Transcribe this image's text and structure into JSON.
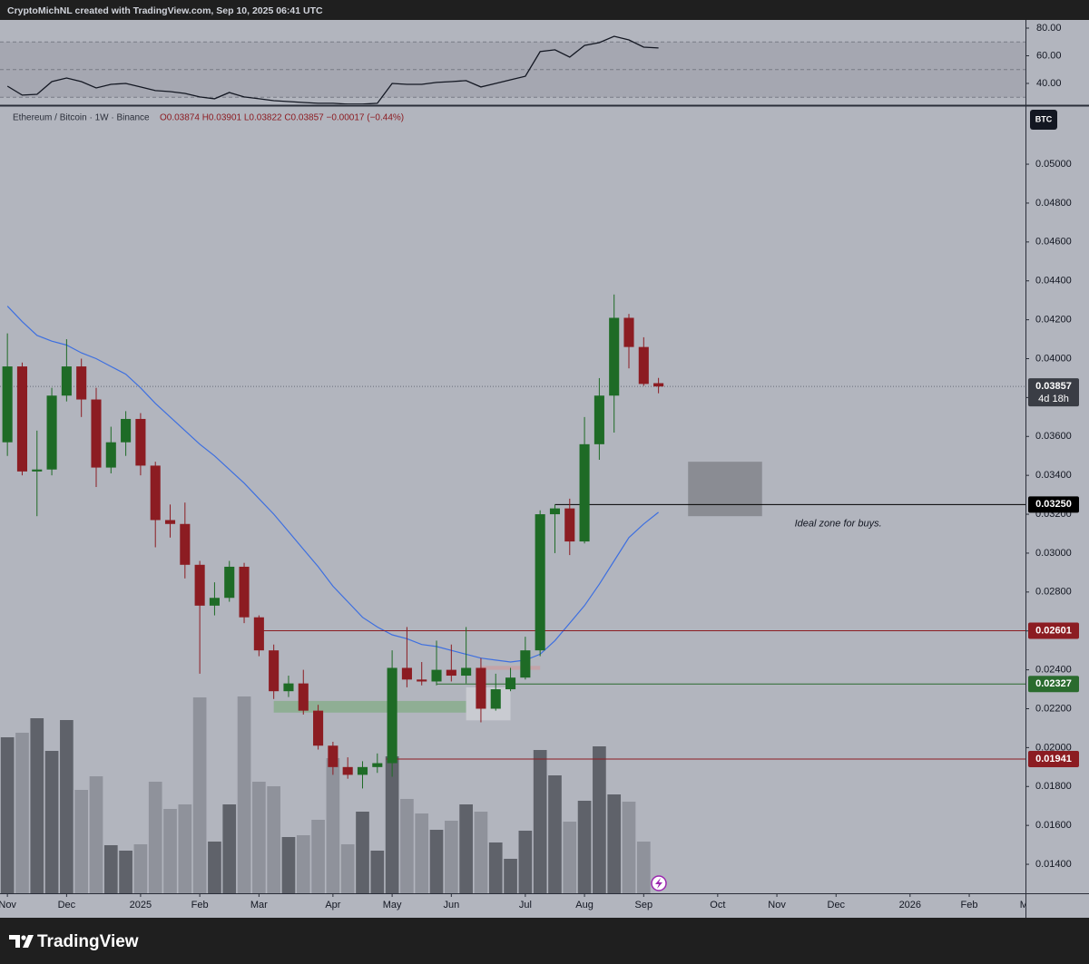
{
  "chart_data": {
    "type": "candlestick",
    "header": "CryptoMichNL created with TradingView.com, Sep 10, 2025 06:41 UTC",
    "symbol": "Ethereum / Bitcoin · 1W · Binance",
    "ohlc_legend": "O0.03874 H0.03901 L0.03822 C0.03857 −0.00017 (−0.44%)",
    "currency": "BTC",
    "categories": [
      null,
      null,
      null,
      null,
      null,
      null,
      null,
      null,
      null,
      null,
      null,
      null,
      null,
      null,
      null,
      null,
      null,
      null,
      null,
      null,
      null,
      null,
      null,
      null,
      null,
      null,
      null,
      null,
      null,
      null,
      null,
      null,
      null,
      null,
      null,
      null,
      null,
      null,
      null,
      null,
      null,
      null,
      null,
      null,
      null
    ],
    "open": [
      0.0357,
      0.0396,
      0.0342,
      0.0343,
      0.0381,
      0.0396,
      0.0379,
      0.0344,
      0.0357,
      0.0369,
      0.0345,
      0.0317,
      0.0315,
      0.0294,
      0.0273,
      0.0277,
      0.0293,
      0.0267,
      0.025,
      0.0229,
      0.0233,
      0.0219,
      0.0201,
      0.019,
      0.0186,
      0.019,
      0.0192,
      0.0241,
      0.0235,
      0.0234,
      0.024,
      0.0237,
      0.0241,
      0.022,
      0.023,
      0.0236,
      0.025,
      0.032,
      0.0323,
      0.0306,
      0.0356,
      0.0381,
      0.0421,
      0.0406,
      0.03874
    ],
    "high": [
      0.0413,
      0.0398,
      0.0363,
      0.0385,
      0.041,
      0.04,
      0.0385,
      0.0365,
      0.0373,
      0.0372,
      0.0347,
      0.0325,
      0.0326,
      0.0296,
      0.0285,
      0.0296,
      0.0295,
      0.0268,
      0.0253,
      0.0237,
      0.024,
      0.0222,
      0.0203,
      0.0195,
      0.0193,
      0.0197,
      0.025,
      0.0262,
      0.0244,
      0.0255,
      0.0253,
      0.0262,
      0.0246,
      0.0238,
      0.0241,
      0.0257,
      0.0322,
      0.0325,
      0.0328,
      0.037,
      0.039,
      0.0433,
      0.0423,
      0.0411,
      0.03901
    ],
    "low": [
      0.035,
      0.034,
      0.0319,
      0.034,
      0.0378,
      0.037,
      0.0334,
      0.0341,
      0.035,
      0.034,
      0.0303,
      0.0308,
      0.0287,
      0.0238,
      0.0268,
      0.0275,
      0.0264,
      0.0247,
      0.0225,
      0.0226,
      0.0217,
      0.0199,
      0.0186,
      0.0184,
      0.0179,
      0.0187,
      0.0185,
      0.0231,
      0.0232,
      0.0232,
      0.0234,
      0.0233,
      0.0213,
      0.0219,
      0.0229,
      0.0235,
      0.0247,
      0.03,
      0.0299,
      0.0305,
      0.0348,
      0.0362,
      0.0395,
      0.0386,
      0.03822
    ],
    "close": [
      0.0396,
      0.0342,
      0.0343,
      0.0381,
      0.0396,
      0.0379,
      0.0344,
      0.0357,
      0.0369,
      0.0345,
      0.0317,
      0.0315,
      0.0294,
      0.0273,
      0.0277,
      0.0293,
      0.0267,
      0.025,
      0.0229,
      0.0233,
      0.0219,
      0.0201,
      0.019,
      0.0186,
      0.019,
      0.0192,
      0.0241,
      0.0235,
      0.0234,
      0.024,
      0.0237,
      0.0241,
      0.022,
      0.023,
      0.0236,
      0.025,
      0.032,
      0.0323,
      0.0306,
      0.0356,
      0.0381,
      0.0421,
      0.0406,
      0.0387,
      0.03857
    ],
    "up_color": "#1e6b26",
    "down_color": "#8c1c22",
    "volume": [
      172,
      177,
      193,
      157,
      191,
      114,
      129,
      53,
      47,
      54,
      123,
      93,
      98,
      216,
      57,
      98,
      217,
      123,
      118,
      62,
      64,
      81,
      149,
      54,
      90,
      47,
      151,
      104,
      88,
      70,
      80,
      98,
      90,
      56,
      38,
      69,
      158,
      130,
      79,
      102,
      162,
      109,
      101,
      57,
      null
    ],
    "volume_lim": [
      0,
      867
    ],
    "volume_up_color": "#5f626a",
    "volume_down_color": "#8f929b",
    "ma": {
      "color": "#3d6fe0",
      "values": [
        0.0427,
        0.0419,
        0.0412,
        0.0409,
        0.0407,
        0.0403,
        0.04,
        0.0396,
        0.0392,
        0.0385,
        0.0377,
        0.037,
        0.0363,
        0.0356,
        0.035,
        0.0343,
        0.0336,
        0.0328,
        0.032,
        0.0311,
        0.0302,
        0.0293,
        0.0283,
        0.0275,
        0.0267,
        0.0262,
        0.0258,
        0.0256,
        0.0253,
        0.0252,
        0.025,
        0.0248,
        0.0246,
        0.0245,
        0.0244,
        0.0245,
        0.0248,
        0.0255,
        0.0264,
        0.0273,
        0.0284,
        0.0296,
        0.0308,
        0.0315,
        0.0321
      ]
    },
    "rsi": {
      "color": "#131722",
      "values": [
        38.0,
        31.5,
        32.1,
        41.3,
        43.9,
        41.3,
        36.7,
        39.3,
        40.0,
        37.4,
        34.8,
        34.1,
        32.8,
        30.2,
        28.9,
        33.4,
        30.2,
        28.9,
        27.5,
        26.9,
        26.2,
        25.6,
        25.6,
        25.0,
        25.0,
        25.6,
        40.0,
        39.3,
        39.3,
        40.7,
        41.3,
        42.0,
        37.4,
        40.0,
        42.6,
        45.2,
        63.0,
        64.3,
        59.0,
        67.5,
        69.5,
        74.1,
        71.5,
        66.2,
        65.6
      ],
      "lim": [
        24.9,
        85.9
      ],
      "ticks": [
        {
          "value": 80,
          "label": "80.00"
        },
        {
          "value": 60,
          "label": "60.00"
        },
        {
          "value": 40,
          "label": "40.00"
        }
      ],
      "levels": [
        70,
        50,
        30
      ]
    },
    "xlim": [
      -0.5,
      68.8
    ],
    "xticks": [
      {
        "value": 0,
        "label": "Nov"
      },
      {
        "value": 4,
        "label": "Dec"
      },
      {
        "value": 9,
        "label": "2025"
      },
      {
        "value": 13,
        "label": "Feb"
      },
      {
        "value": 17,
        "label": "Mar"
      },
      {
        "value": 22,
        "label": "Apr"
      },
      {
        "value": 26,
        "label": "May"
      },
      {
        "value": 30,
        "label": "Jun"
      },
      {
        "value": 35,
        "label": "Jul"
      },
      {
        "value": 39,
        "label": "Aug"
      },
      {
        "value": 43,
        "label": "Sep"
      },
      {
        "value": 48,
        "label": "Oct"
      },
      {
        "value": 52,
        "label": "Nov"
      },
      {
        "value": 56,
        "label": "Dec"
      },
      {
        "value": 61,
        "label": "2026"
      },
      {
        "value": 65,
        "label": "Feb"
      },
      {
        "value": 69,
        "label": "Mar"
      }
    ],
    "ylim": [
      0.01251,
      0.05294
    ],
    "yticks": [
      {
        "value": 0.014,
        "label": "0.01400"
      },
      {
        "value": 0.016,
        "label": "0.01600"
      },
      {
        "value": 0.018,
        "label": "0.01800"
      },
      {
        "value": 0.02,
        "label": "0.02000"
      },
      {
        "value": 0.022,
        "label": "0.02200"
      },
      {
        "value": 0.024,
        "label": "0.02400"
      },
      {
        "value": 0.026,
        "label": "0.02600"
      },
      {
        "value": 0.028,
        "label": "0.02800"
      },
      {
        "value": 0.03,
        "label": "0.03000"
      },
      {
        "value": 0.032,
        "label": "0.03200"
      },
      {
        "value": 0.034,
        "label": "0.03400"
      },
      {
        "value": 0.036,
        "label": "0.03600"
      },
      {
        "value": 0.038,
        "label": "0.03800"
      },
      {
        "value": 0.04,
        "label": "0.04000"
      },
      {
        "value": 0.042,
        "label": "0.04200"
      },
      {
        "value": 0.044,
        "label": "0.04400"
      },
      {
        "value": 0.046,
        "label": "0.04600"
      },
      {
        "value": 0.048,
        "label": "0.04800"
      },
      {
        "value": 0.05,
        "label": "0.05000"
      }
    ],
    "grid": false,
    "last_price": 0.03857,
    "countdown": "4d 18h",
    "levels": [
      {
        "value": 0.0325,
        "label": "0.03250",
        "color": "#000000",
        "from": 37
      },
      {
        "value": 0.02601,
        "label": "0.02601",
        "color": "#8c1c22",
        "from": 17.3
      },
      {
        "value": 0.02327,
        "label": "0.02327",
        "color": "#2a6b2e",
        "from": 29
      },
      {
        "value": 0.01941,
        "label": "0.01941",
        "color": "#8c1c22",
        "from": 25.6
      }
    ],
    "zones": [
      {
        "x": [
          46.0,
          51.0
        ],
        "y": [
          0.0319,
          0.0347
        ],
        "color": "#8a8c93"
      },
      {
        "x": [
          18.0,
          31.0
        ],
        "y": [
          0.0218,
          0.0224
        ],
        "color": "#8fae94"
      },
      {
        "x": [
          32.0,
          36.0
        ],
        "y": [
          0.024,
          0.0242
        ],
        "color": "#c4a3a8"
      },
      {
        "x": [
          31.0,
          34.0
        ],
        "y": [
          0.0214,
          0.0231
        ],
        "color": "#c9cbd1"
      }
    ],
    "annotations": [
      {
        "text": "Ideal zone for buys.",
        "x": 53.2,
        "y": 0.0315
      }
    ],
    "footer": "TradingView"
  }
}
